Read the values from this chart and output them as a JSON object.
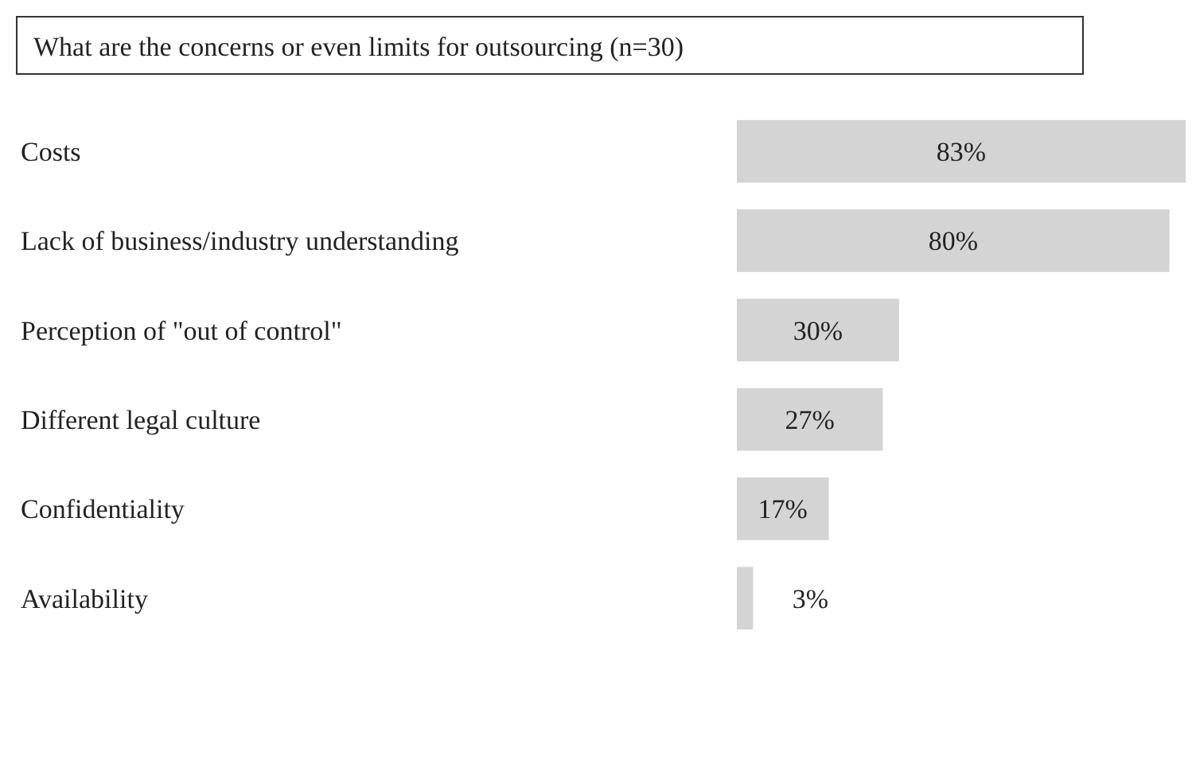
{
  "chart_data": {
    "type": "bar",
    "orientation": "horizontal",
    "title": "What are the concerns or even limits for outsourcing (n=30)",
    "categories": [
      "Costs",
      "Lack of business/industry understanding",
      "Perception of \"out of control\"",
      "Different legal culture",
      "Confidentiality",
      "Availability"
    ],
    "values": [
      83,
      80,
      30,
      27,
      17,
      3
    ],
    "color": "#d4d4d4",
    "data_labels": true,
    "value_labels": [
      "83%",
      "80%",
      "30%",
      "27%",
      "17%",
      "3%"
    ]
  }
}
